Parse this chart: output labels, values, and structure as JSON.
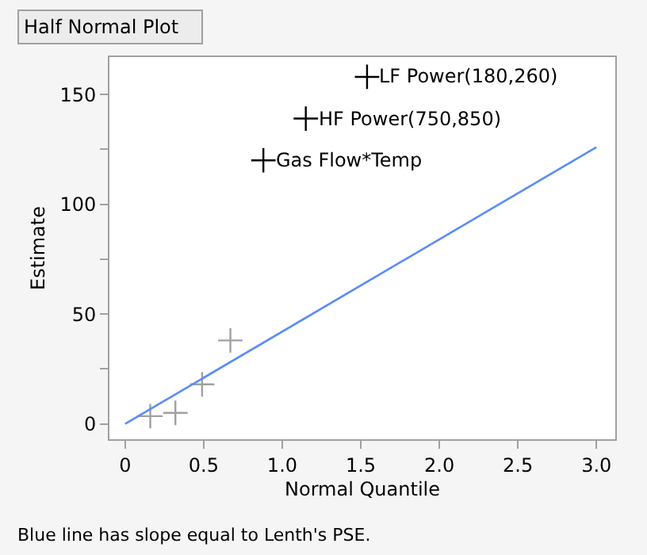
{
  "chart_data": {
    "type": "scatter",
    "title": "Half Normal Plot",
    "xlabel": "Normal Quantile",
    "ylabel": "Estimate",
    "xlim": [
      -0.1,
      3.12
    ],
    "ylim": [
      -7,
      167
    ],
    "xticks": [
      0,
      0.5,
      {
        "value": 1,
        "label": "1.0"
      },
      1.5,
      {
        "value": 2,
        "label": "2.0"
      },
      2.5,
      {
        "value": 3,
        "label": "3.0"
      }
    ],
    "yticks": [
      0,
      {
        "value": 25,
        "label": null
      },
      50,
      {
        "value": 75,
        "label": null
      },
      100,
      {
        "value": 125,
        "label": null
      },
      150
    ],
    "grid": false,
    "legend": false,
    "marker": "cross",
    "series": [
      {
        "color": "#a0a0a0",
        "x": [
          0.16,
          0.32,
          0.49,
          0.67
        ],
        "values": [
          3.5,
          5,
          18,
          38
        ]
      },
      {
        "color": "#000000",
        "x": [
          0.88,
          1.15,
          1.54
        ],
        "values": [
          120,
          139,
          158
        ]
      },
      {
        "type": "line",
        "color": "#5b8cf5",
        "x": [
          0,
          3.0
        ],
        "values": [
          0,
          126
        ],
        "marker": "none",
        "line_style": "solid"
      }
    ],
    "annotations": [
      {
        "text": "Gas Flow*Temp",
        "x": 0.88,
        "y": 120
      },
      {
        "text": "HF Power(750,850)",
        "x": 1.15,
        "y": 139
      },
      {
        "text": "LF Power(180,260)",
        "x": 1.54,
        "y": 158
      },
      "Blue line has slope equal to Lenth's PSE."
    ]
  }
}
